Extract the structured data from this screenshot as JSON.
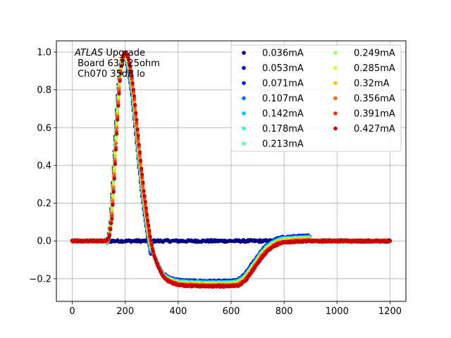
{
  "chart_data": {
    "type": "scatter",
    "title": "",
    "xlabel": "",
    "ylabel": "",
    "xlim": [
      -60,
      1260
    ],
    "ylim": [
      -0.32,
      1.06
    ],
    "grid": true,
    "legend_position": "top-right",
    "legend_columns": 2,
    "x_ticks": [
      "0",
      "200",
      "400",
      "600",
      "800",
      "1000",
      "1200"
    ],
    "y_ticks": [
      "−0.2",
      "0.0",
      "0.2",
      "0.4",
      "0.6",
      "0.8",
      "1.0"
    ],
    "annotation": {
      "italic_part": "ATLAS",
      "rest_first_line": " Upgrade",
      "line2": " Board 633 25ohm",
      "line3": " Ch070 35dB lo"
    },
    "flat_curve_y": 0.0,
    "series": [
      {
        "name": "0.036mA",
        "color": "#000080"
      },
      {
        "name": "0.053mA",
        "color": "#0000b8"
      },
      {
        "name": "0.071mA",
        "color": "#0018ff"
      },
      {
        "name": "0.107mA",
        "color": "#0070ff"
      },
      {
        "name": "0.142mA",
        "color": "#00c4ff"
      },
      {
        "name": "0.178mA",
        "color": "#29ffce"
      },
      {
        "name": "0.213mA",
        "color": "#5cff9a"
      },
      {
        "name": "0.249mA",
        "color": "#9aff5c"
      },
      {
        "name": "0.285mA",
        "color": "#ceff29"
      },
      {
        "name": "0.32mA",
        "color": "#ffc400"
      },
      {
        "name": "0.356mA",
        "color": "#ff6800"
      },
      {
        "name": "0.391mA",
        "color": "#ff2a00"
      },
      {
        "name": "0.427mA",
        "color": "#c80000"
      }
    ],
    "pulse_profile": {
      "x": [
        0,
        130,
        140,
        150,
        160,
        170,
        180,
        190,
        200,
        210,
        220,
        230,
        240,
        250,
        260,
        270,
        280,
        290,
        300,
        310,
        320,
        330,
        340,
        350,
        360,
        380,
        400,
        420,
        450,
        500,
        550,
        600,
        630,
        650,
        660,
        680,
        700,
        720,
        740,
        760,
        780,
        800,
        850,
        900,
        1000,
        1100,
        1200
      ],
      "y": [
        0.0,
        0.0,
        0.02,
        0.12,
        0.35,
        0.62,
        0.85,
        0.97,
        1.0,
        0.98,
        0.92,
        0.82,
        0.68,
        0.54,
        0.4,
        0.27,
        0.16,
        0.06,
        -0.02,
        -0.08,
        -0.12,
        -0.15,
        -0.18,
        -0.2,
        -0.21,
        -0.225,
        -0.232,
        -0.236,
        -0.238,
        -0.24,
        -0.24,
        -0.24,
        -0.235,
        -0.215,
        -0.2,
        -0.16,
        -0.12,
        -0.08,
        -0.05,
        -0.03,
        -0.015,
        -0.008,
        -0.003,
        0.0,
        0.0,
        0.0,
        0.0
      ]
    }
  }
}
